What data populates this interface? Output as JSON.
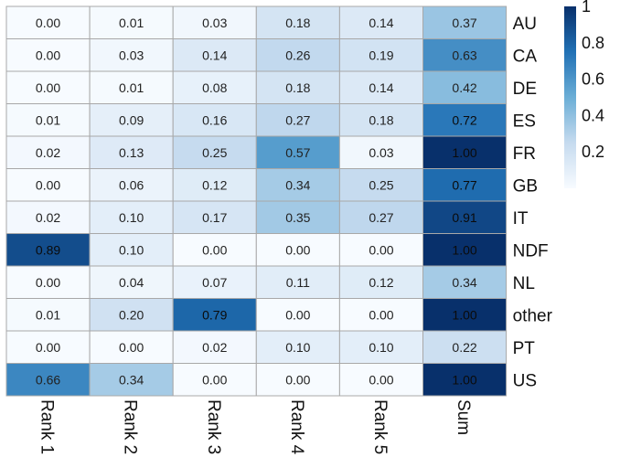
{
  "chart_data": {
    "type": "heatmap",
    "columns": [
      "Rank 1",
      "Rank 2",
      "Rank 3",
      "Rank 4",
      "Rank 5",
      "Sum"
    ],
    "rows": [
      "AU",
      "CA",
      "DE",
      "ES",
      "FR",
      "GB",
      "IT",
      "NDF",
      "NL",
      "other",
      "PT",
      "US"
    ],
    "values": [
      [
        0.0,
        0.01,
        0.03,
        0.18,
        0.14,
        0.37
      ],
      [
        0.0,
        0.03,
        0.14,
        0.26,
        0.19,
        0.63
      ],
      [
        0.0,
        0.01,
        0.08,
        0.18,
        0.14,
        0.42
      ],
      [
        0.01,
        0.09,
        0.16,
        0.27,
        0.18,
        0.72
      ],
      [
        0.02,
        0.13,
        0.25,
        0.57,
        0.03,
        1.0
      ],
      [
        0.0,
        0.06,
        0.12,
        0.34,
        0.25,
        0.77
      ],
      [
        0.02,
        0.1,
        0.17,
        0.35,
        0.27,
        0.91
      ],
      [
        0.89,
        0.1,
        0.0,
        0.0,
        0.0,
        1.0
      ],
      [
        0.0,
        0.04,
        0.07,
        0.11,
        0.12,
        0.34
      ],
      [
        0.01,
        0.2,
        0.79,
        0.0,
        0.0,
        1.0
      ],
      [
        0.0,
        0.0,
        0.02,
        0.1,
        0.1,
        0.22
      ],
      [
        0.66,
        0.34,
        0.0,
        0.0,
        0.0,
        1.0
      ]
    ],
    "value_labels": [
      [
        "0.00",
        "0.01",
        "0.03",
        "0.18",
        "0.14",
        "0.37"
      ],
      [
        "0.00",
        "0.03",
        "0.14",
        "0.26",
        "0.19",
        "0.63"
      ],
      [
        "0.00",
        "0.01",
        "0.08",
        "0.18",
        "0.14",
        "0.42"
      ],
      [
        "0.01",
        "0.09",
        "0.16",
        "0.27",
        "0.18",
        "0.72"
      ],
      [
        "0.02",
        "0.13",
        "0.25",
        "0.57",
        "0.03",
        "1.00"
      ],
      [
        "0.00",
        "0.06",
        "0.12",
        "0.34",
        "0.25",
        "0.77"
      ],
      [
        "0.02",
        "0.10",
        "0.17",
        "0.35",
        "0.27",
        "0.91"
      ],
      [
        "0.89",
        "0.10",
        "0.00",
        "0.00",
        "0.00",
        "1.00"
      ],
      [
        "0.00",
        "0.04",
        "0.07",
        "0.11",
        "0.12",
        "0.34"
      ],
      [
        "0.01",
        "0.20",
        "0.79",
        "0.00",
        "0.00",
        "1.00"
      ],
      [
        "0.00",
        "0.00",
        "0.02",
        "0.10",
        "0.10",
        "0.22"
      ],
      [
        "0.66",
        "0.34",
        "0.00",
        "0.00",
        "0.00",
        "1.00"
      ]
    ],
    "colorbar": {
      "range": [
        0,
        1
      ],
      "ticks": [
        0.2,
        0.4,
        0.6,
        0.8,
        1.0
      ],
      "tick_labels": [
        "0.2",
        "0.4",
        "0.6",
        "0.8",
        "1"
      ],
      "colors": [
        "#f7fbff",
        "#c6dbef",
        "#6baed6",
        "#2171b5",
        "#08306b"
      ]
    },
    "grid": true,
    "legend": "colorbar top-right"
  }
}
